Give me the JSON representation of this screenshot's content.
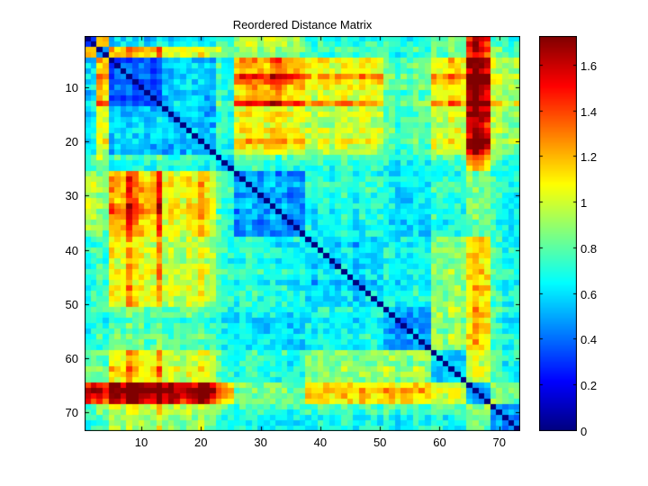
{
  "title": "Reordered Distance Matrix",
  "colors": {
    "background": "#ffffff",
    "axis": "#000000",
    "text": "#000000",
    "colormap_low": "#00008f",
    "colormap_high": "#8f0000"
  },
  "chart_data": {
    "type": "heatmap",
    "title": "Reordered Distance Matrix",
    "xlabel": "",
    "ylabel": "",
    "n": 73,
    "x_range": [
      1,
      73
    ],
    "y_range": [
      1,
      73
    ],
    "x_ticks": [
      10,
      20,
      30,
      40,
      50,
      60,
      70
    ],
    "y_ticks": [
      10,
      20,
      30,
      40,
      50,
      60,
      70
    ],
    "grid": false,
    "colormap": "jet",
    "value_range": [
      0,
      1.73
    ],
    "diagonal_value": 0,
    "colorbar": {
      "position": "right",
      "tick_values": [
        0,
        0.2,
        0.4,
        0.6,
        0.8,
        1,
        1.2,
        1.4,
        1.6
      ],
      "tick_labels": [
        "0",
        "0.2",
        "0.4",
        "0.6",
        "0.8",
        "1",
        "1.2",
        "1.4",
        "1.6"
      ]
    },
    "matrix_model": {
      "description": "73x73 symmetric distance matrix, hierarchically reordered into clusters; values estimated from colorbar",
      "cluster_ranges": [
        [
          1,
          2
        ],
        [
          3,
          4
        ],
        [
          5,
          13
        ],
        [
          14,
          22
        ],
        [
          23,
          25
        ],
        [
          26,
          37
        ],
        [
          38,
          50
        ],
        [
          51,
          58
        ],
        [
          59,
          64
        ],
        [
          65,
          68
        ],
        [
          69,
          73
        ]
      ],
      "block_distances": [
        [
          0.35,
          1.15,
          0.6,
          0.6,
          0.7,
          0.95,
          0.7,
          0.65,
          0.8,
          1.3,
          0.7
        ],
        [
          1.15,
          0.55,
          1.15,
          1.0,
          0.9,
          0.85,
          0.75,
          0.7,
          0.8,
          1.25,
          0.8
        ],
        [
          0.6,
          1.15,
          0.42,
          0.6,
          0.75,
          1.2,
          1.05,
          0.8,
          1.05,
          1.45,
          0.95
        ],
        [
          0.6,
          1.0,
          0.6,
          0.55,
          0.7,
          1.05,
          0.95,
          0.75,
          0.95,
          1.35,
          0.9
        ],
        [
          0.7,
          0.9,
          0.75,
          0.7,
          0.55,
          0.75,
          0.75,
          0.65,
          0.75,
          1.05,
          0.75
        ],
        [
          0.95,
          0.85,
          1.2,
          1.05,
          0.75,
          0.5,
          0.7,
          0.6,
          0.7,
          0.8,
          0.7
        ],
        [
          0.7,
          0.75,
          1.05,
          0.95,
          0.75,
          0.7,
          0.6,
          0.65,
          0.85,
          1.0,
          0.7
        ],
        [
          0.65,
          0.7,
          0.8,
          0.75,
          0.65,
          0.6,
          0.65,
          0.45,
          0.85,
          1.0,
          0.7
        ],
        [
          0.8,
          0.8,
          1.05,
          0.95,
          0.75,
          0.7,
          0.85,
          0.85,
          0.55,
          0.9,
          0.7
        ],
        [
          1.3,
          1.25,
          1.45,
          1.35,
          1.05,
          0.8,
          1.0,
          1.0,
          0.9,
          0.4,
          0.8
        ],
        [
          0.7,
          0.8,
          0.95,
          0.9,
          0.75,
          0.7,
          0.7,
          0.7,
          0.7,
          0.8,
          0.5
        ]
      ],
      "item_heat": {
        "5": 0.1,
        "8": 0.22,
        "9": 0.12,
        "13": 0.2,
        "15": 0.12,
        "20": 0.16,
        "21": 0.12,
        "32": 0.08,
        "33": 0.12,
        "47": 0.08,
        "62": 0.1,
        "63": 0.1,
        "65": 0.1,
        "66": 0.22,
        "67": 0.2,
        "68": 0.06
      },
      "heat_gain": 1.4,
      "heat_ramp_start": 0.75,
      "heat_ramp_width": 0.45,
      "noise_cell": 0.22,
      "noise_streak": 0.12
    }
  }
}
